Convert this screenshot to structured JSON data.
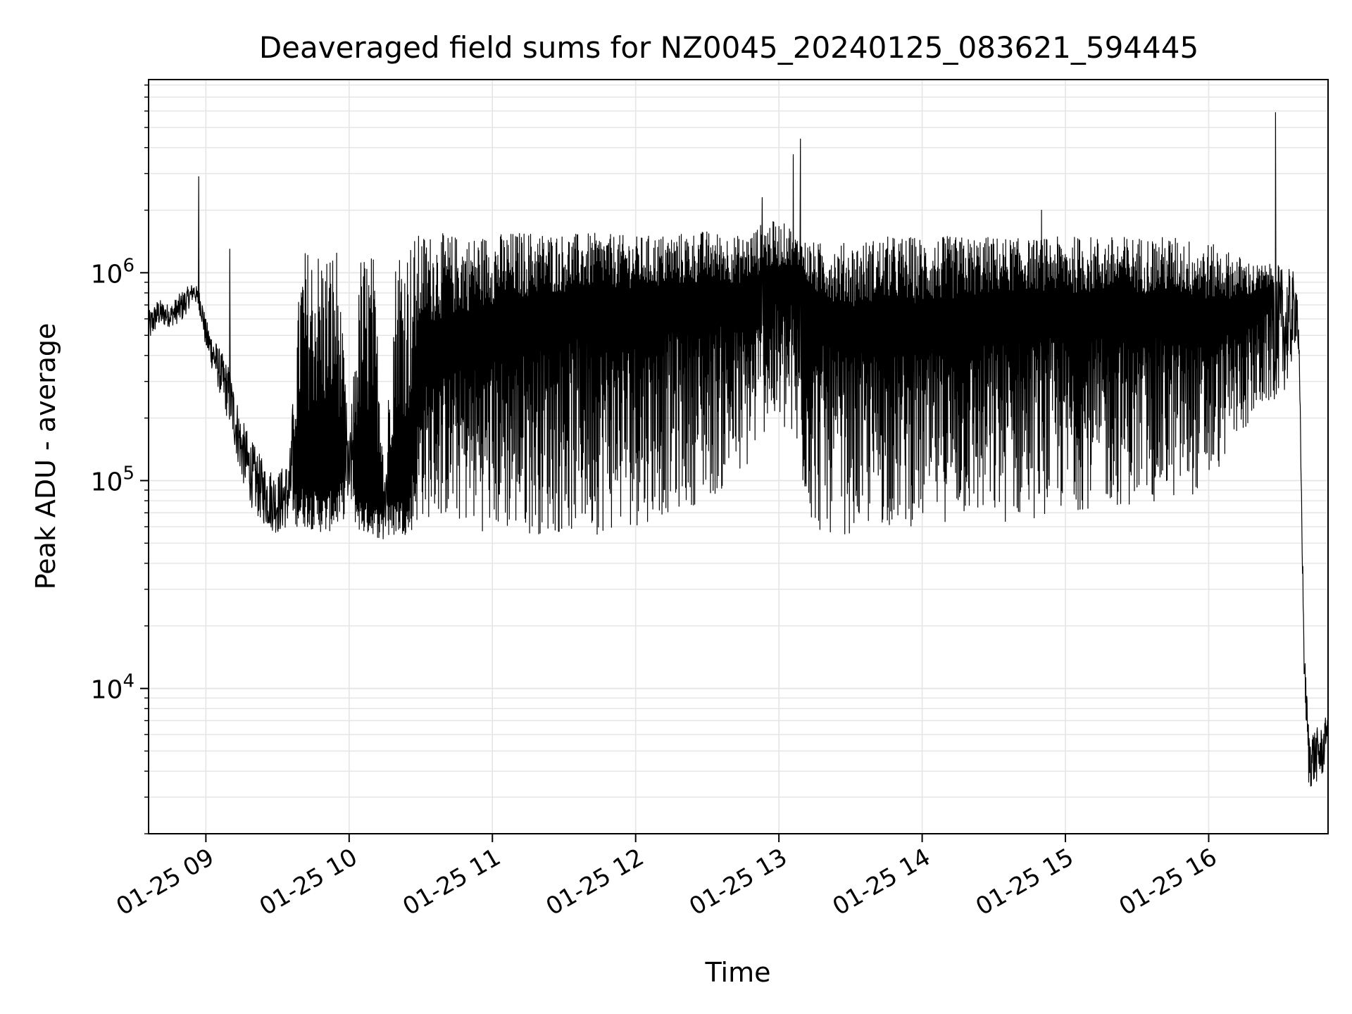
{
  "chart_data": {
    "type": "line",
    "title": "Deaveraged field sums for NZ0045_20240125_083621_594445",
    "xlabel": "Time",
    "ylabel": "Peak ADU - average",
    "x_axis": "time",
    "y_scale": "log",
    "x_range": [
      "2024-01-25 08:36",
      "2024-01-25 16:50"
    ],
    "ylim": [
      2000,
      8500000
    ],
    "grid": true,
    "legend": "none",
    "x_ticks": [
      "2024-01-25 09:00",
      "2024-01-25 10:00",
      "2024-01-25 11:00",
      "2024-01-25 12:00",
      "2024-01-25 13:00",
      "2024-01-25 14:00",
      "2024-01-25 15:00",
      "2024-01-25 16:00"
    ],
    "x_tick_labels": [
      "01-25 09",
      "01-25 10",
      "01-25 11",
      "01-25 12",
      "01-25 13",
      "01-25 14",
      "01-25 15",
      "01-25 16"
    ],
    "y_tick_labels": [
      {
        "value": 10000,
        "base": "10",
        "exp": "4"
      },
      {
        "value": 100000,
        "base": "10",
        "exp": "5"
      },
      {
        "value": 1000000,
        "base": "10",
        "exp": "6"
      }
    ],
    "line_color": "#000000",
    "grid_color": "#e5e5e5",
    "series": [
      {
        "x": [
          "2024-01-25 08:36",
          "2024-01-25 08:40",
          "2024-01-25 08:45",
          "2024-01-25 08:50",
          "2024-01-25 08:55",
          "2024-01-25 08:58",
          "2024-01-25 09:00",
          "2024-01-25 09:05",
          "2024-01-25 09:10",
          "2024-01-25 09:15",
          "2024-01-25 09:20",
          "2024-01-25 09:25",
          "2024-01-25 09:30",
          "2024-01-25 09:35",
          "2024-01-25 09:40",
          "2024-01-25 09:45",
          "2024-01-25 09:50",
          "2024-01-25 09:55",
          "2024-01-25 10:00",
          "2024-01-25 10:05",
          "2024-01-25 10:10",
          "2024-01-25 10:15",
          "2024-01-25 10:20",
          "2024-01-25 10:25",
          "2024-01-25 10:30",
          "2024-01-25 10:40",
          "2024-01-25 10:50",
          "2024-01-25 11:00",
          "2024-01-25 11:15",
          "2024-01-25 11:30",
          "2024-01-25 11:45",
          "2024-01-25 12:00",
          "2024-01-25 12:15",
          "2024-01-25 12:30",
          "2024-01-25 12:45",
          "2024-01-25 12:55",
          "2024-01-25 13:05",
          "2024-01-25 13:08",
          "2024-01-25 13:15",
          "2024-01-25 13:30",
          "2024-01-25 13:45",
          "2024-01-25 14:00",
          "2024-01-25 14:15",
          "2024-01-25 14:30",
          "2024-01-25 14:45",
          "2024-01-25 15:00",
          "2024-01-25 15:15",
          "2024-01-25 15:30",
          "2024-01-25 15:45",
          "2024-01-25 16:00",
          "2024-01-25 16:10",
          "2024-01-25 16:20",
          "2024-01-25 16:28",
          "2024-01-25 16:33",
          "2024-01-25 16:37",
          "2024-01-25 16:38",
          "2024-01-25 16:39",
          "2024-01-25 16:40",
          "2024-01-25 16:42",
          "2024-01-25 16:45",
          "2024-01-25 16:48",
          "2024-01-25 16:50"
        ],
        "y": [
          550000,
          650000,
          620000,
          700000,
          880000,
          700000,
          500000,
          350000,
          250000,
          140000,
          110000,
          90000,
          85000,
          95000,
          100000,
          95000,
          90000,
          100000,
          110000,
          85000,
          80000,
          75000,
          90000,
          80000,
          350000,
          400000,
          450000,
          500000,
          550000,
          600000,
          650000,
          650000,
          650000,
          700000,
          700000,
          800000,
          900000,
          850000,
          600000,
          500000,
          550000,
          500000,
          550000,
          600000,
          650000,
          600000,
          600000,
          600000,
          600000,
          550000,
          600000,
          650000,
          800000,
          850000,
          700000,
          300000,
          60000,
          12000,
          5000,
          4500,
          5000,
          8000
        ],
        "envelope_low": [
          450000,
          550000,
          550000,
          580000,
          750000,
          600000,
          420000,
          280000,
          180000,
          100000,
          70000,
          60000,
          55000,
          60000,
          60000,
          58000,
          55000,
          60000,
          70000,
          55000,
          55000,
          50000,
          55000,
          55000,
          65000,
          65000,
          60000,
          55000,
          55000,
          55000,
          55000,
          60000,
          70000,
          80000,
          100000,
          180000,
          150000,
          100000,
          55000,
          55000,
          60000,
          60000,
          65000,
          60000,
          65000,
          70000,
          75000,
          75000,
          80000,
          90000,
          150000,
          200000,
          250000,
          280000,
          500000,
          280000,
          55000,
          11000,
          3200,
          3500,
          3800,
          6500
        ],
        "envelope_high": [
          650000,
          750000,
          700000,
          820000,
          900000,
          800000,
          600000,
          450000,
          350000,
          200000,
          150000,
          120000,
          110000,
          130000,
          1300000,
          1400000,
          1350000,
          1400000,
          150000,
          1300000,
          1300000,
          130000,
          1600000,
          1500000,
          1550000,
          1550000,
          1500000,
          1550000,
          1600000,
          1550000,
          1550000,
          1500000,
          1550000,
          1600000,
          1500000,
          1800000,
          1700000,
          1500000,
          1400000,
          1400000,
          1500000,
          1500000,
          1500000,
          1500000,
          1450000,
          1500000,
          1500000,
          1500000,
          1500000,
          1400000,
          1250000,
          1100000,
          1100000,
          1050000,
          1000000,
          400000,
          80000,
          16000,
          6500,
          6500,
          6500,
          8200
        ]
      }
    ],
    "spikes": [
      {
        "x": "2024-01-25 08:57",
        "y": 2900000
      },
      {
        "x": "2024-01-25 09:10",
        "y": 1300000
      },
      {
        "x": "2024-01-25 12:53",
        "y": 2300000
      },
      {
        "x": "2024-01-25 13:06",
        "y": 3700000
      },
      {
        "x": "2024-01-25 13:09",
        "y": 4400000
      },
      {
        "x": "2024-01-25 14:50",
        "y": 2000000
      },
      {
        "x": "2024-01-25 16:28",
        "y": 5900000
      }
    ]
  }
}
